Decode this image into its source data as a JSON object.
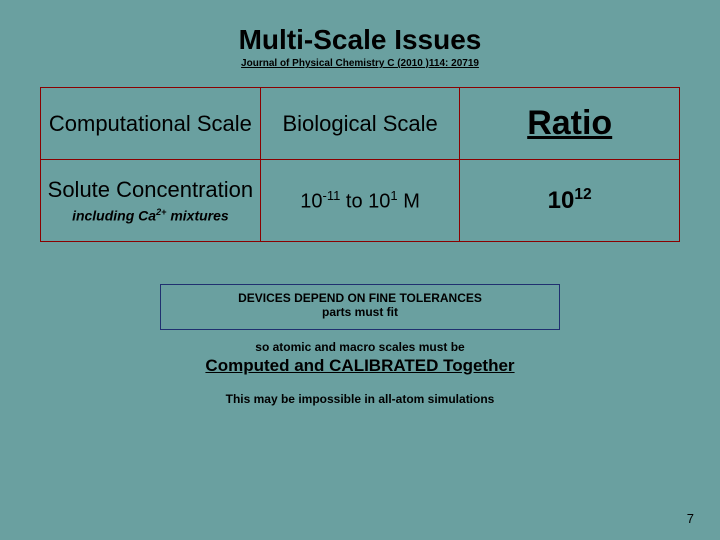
{
  "colors": {
    "background": "#6aa0a0",
    "table_border": "#8a0000",
    "box_border": "#203070"
  },
  "title": "Multi-Scale Issues",
  "subtitle": "Journal of Physical Chemistry C (2010 )114: 20719",
  "table": {
    "header": {
      "col1": "Computational Scale",
      "col2": "Biological Scale",
      "col3": "Ratio"
    },
    "row": {
      "col1_main": "Solute Concentration",
      "col1_sub_prefix": "including  Ca",
      "col1_sub_sup": "2+",
      "col1_sub_suffix": " mixtures",
      "col2_prefix": "10",
      "col2_exp1": "-11",
      "col2_mid": " to 10",
      "col2_exp2": "1",
      "col2_suffix": " M",
      "col3_base": "10",
      "col3_exp": "12"
    }
  },
  "box": {
    "line1": "DEVICES DEPEND ON FINE TOLERANCES",
    "line2": "parts must fit"
  },
  "mid_line": "so atomic and macro scales must be",
  "comp_line": "Computed and CALIBRATED Together",
  "imp_line": "This may be impossible in all-atom simulations",
  "page_number": "7"
}
